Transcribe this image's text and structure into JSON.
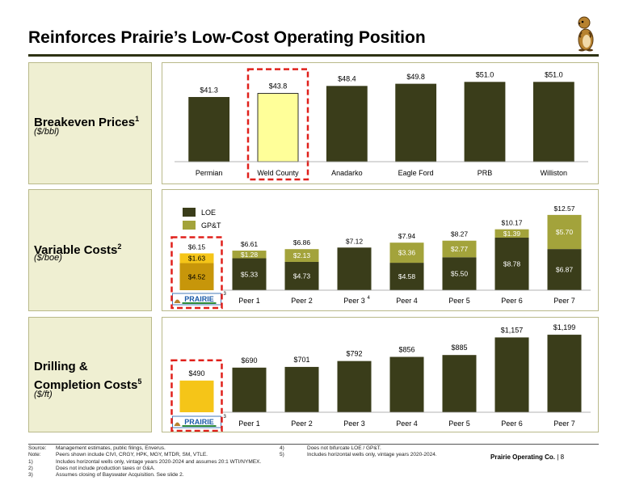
{
  "title": "Reinforces Prairie’s Low-Cost Operating Position",
  "panels": {
    "breakeven": {
      "heading": "Breakeven Prices",
      "sup": "1",
      "sub": "($/bbl)"
    },
    "variable": {
      "heading": "Variable Costs",
      "sup": "2",
      "sub": "($/boe)"
    },
    "dc": {
      "heading_line1": "Drilling &",
      "heading_line2": "Completion Costs",
      "sup": "5",
      "sub": "($/ft)"
    }
  },
  "colors": {
    "dark": "#3a3d1a",
    "olive": "#a3a33b",
    "gold": "#f5c518",
    "gold_dark": "#c7960a",
    "highlight": "#e0201b",
    "weld_fill": "#ffff99"
  },
  "chart_data": [
    {
      "type": "bar",
      "title": "",
      "categories": [
        "Permian",
        "Weld County",
        "Anadarko",
        "Eagle Ford",
        "PRB",
        "Williston"
      ],
      "values": [
        41.3,
        43.8,
        48.4,
        49.8,
        51.0,
        51.0
      ],
      "labels": [
        "$41.3",
        "$43.8",
        "$48.4",
        "$49.8",
        "$51.0",
        "$51.0"
      ],
      "highlight_index": 1,
      "ylim": [
        0,
        55
      ],
      "grid": false
    },
    {
      "type": "bar",
      "stacked": true,
      "title": "",
      "categories": [
        "Prairie",
        "Peer 1",
        "Peer 2",
        "Peer 3",
        "Peer 4",
        "Peer 5",
        "Peer 6",
        "Peer 7"
      ],
      "category_sup": [
        "3",
        "",
        "",
        "4",
        "",
        "",
        "",
        ""
      ],
      "series": [
        {
          "name": "LOE",
          "values": [
            4.52,
            5.33,
            4.73,
            7.12,
            4.58,
            5.5,
            8.78,
            6.87
          ],
          "labels": [
            "$4.52",
            "$5.33",
            "$4.73",
            "",
            "$4.58",
            "$5.50",
            "$8.78",
            "$6.87"
          ]
        },
        {
          "name": "GP&T",
          "values": [
            1.63,
            1.28,
            2.13,
            0,
            3.36,
            2.77,
            1.39,
            5.7
          ],
          "labels": [
            "$1.63",
            "$1.28",
            "$2.13",
            "",
            "$3.36",
            "$2.77",
            "$1.39",
            "$5.70"
          ]
        }
      ],
      "totals": [
        "$6.15",
        "$6.61",
        "$6.86",
        "$7.12",
        "$7.94",
        "$8.27",
        "$10.17",
        "$12.57"
      ],
      "legend": "top-left",
      "highlight_index": 0,
      "ylim": [
        0,
        13.5
      ],
      "grid": false
    },
    {
      "type": "bar",
      "title": "",
      "categories": [
        "Prairie",
        "Peer 1",
        "Peer 2",
        "Peer 3",
        "Peer 4",
        "Peer 5",
        "Peer 6",
        "Peer 7"
      ],
      "category_sup": [
        "3",
        "",
        "",
        "",
        "",
        "",
        "",
        ""
      ],
      "values": [
        490,
        690,
        701,
        792,
        856,
        885,
        1157,
        1199
      ],
      "labels": [
        "$490",
        "$690",
        "$701",
        "$792",
        "$856",
        "$885",
        "$1,157",
        "$1,199"
      ],
      "highlight_index": 0,
      "ylim": [
        0,
        1300
      ],
      "grid": false
    }
  ],
  "logo_text": "PRAIRIE",
  "footnotes": {
    "left": [
      {
        "key": "Source:",
        "text": "Management estimates, public filings, Enverus."
      },
      {
        "key": "Note:",
        "text": "Peers shown include CIVI, CRGY, HPK, MGY, MTDR, SM, VTLE."
      },
      {
        "key": "1)",
        "text": "Includes horizontal wells only, vintage years 2020-2024 and assumes 20:1 WTI/NYMEX."
      },
      {
        "key": "2)",
        "text": "Does not include production taxes or G&A."
      },
      {
        "key": "3)",
        "text": "Assumes closing of Bayswater Acquisition. See slide 2."
      }
    ],
    "right": [
      {
        "key": "4)",
        "text": "Does not bifurcate LOE / GP&T."
      },
      {
        "key": "5)",
        "text": "Includes horizontal wells only, vintage years 2020-2024."
      }
    ]
  },
  "footer": {
    "company": "Prairie Operating Co.",
    "separator": "|",
    "page": "8"
  }
}
